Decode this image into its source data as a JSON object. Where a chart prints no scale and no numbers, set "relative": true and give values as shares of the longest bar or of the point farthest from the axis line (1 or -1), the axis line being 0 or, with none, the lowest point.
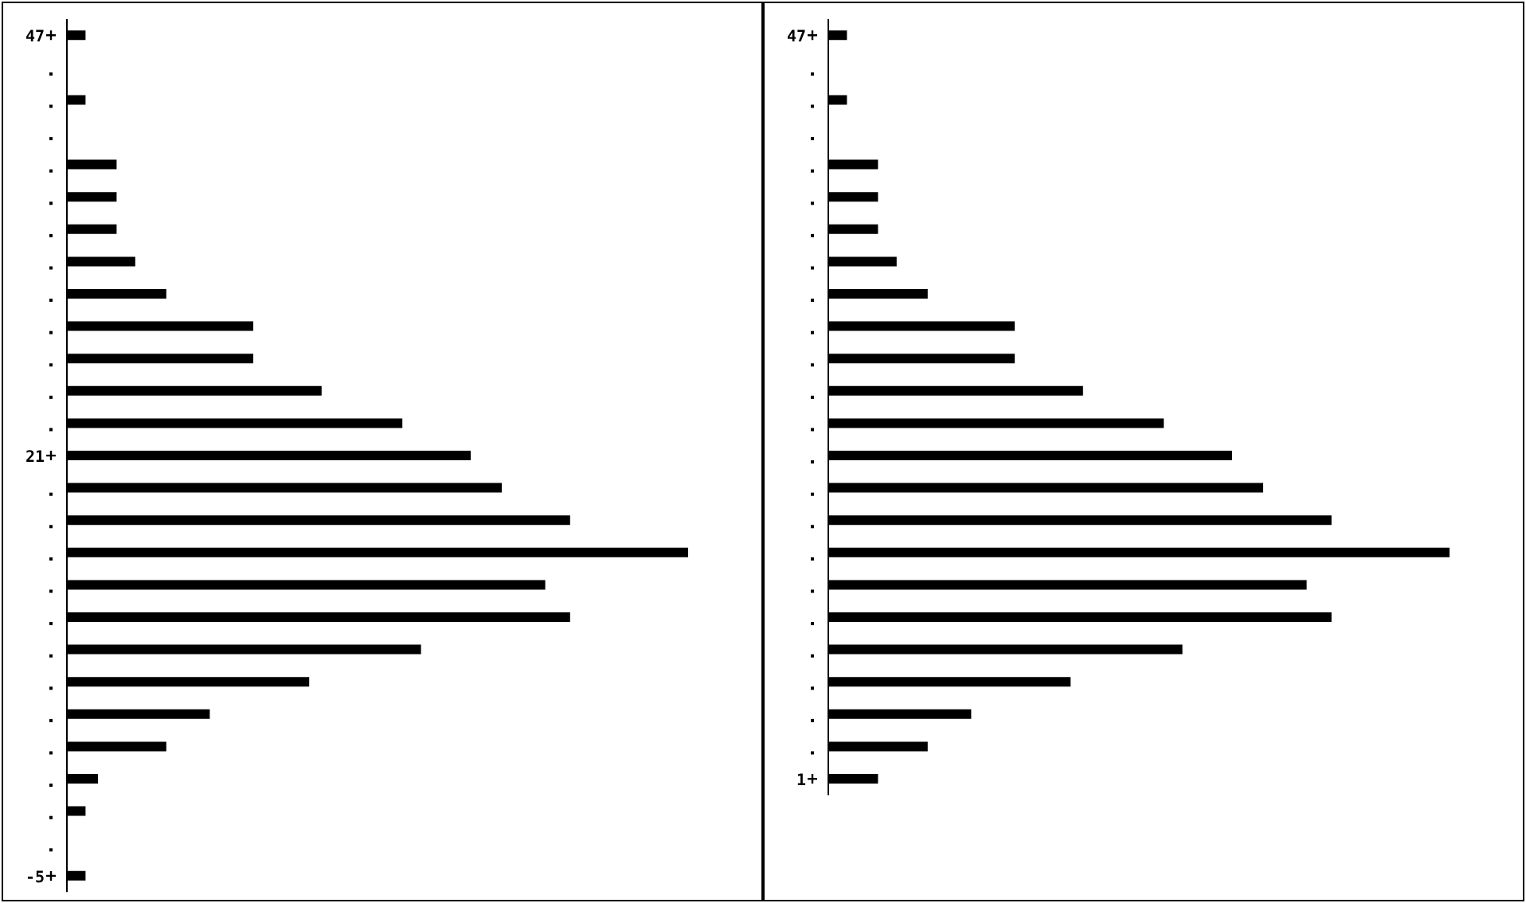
{
  "chart_data": [
    {
      "type": "bar",
      "orientation": "horizontal",
      "relative": true,
      "color": "#000000",
      "categories": [
        "47",
        null,
        null,
        null,
        null,
        null,
        null,
        null,
        null,
        null,
        null,
        null,
        null,
        "21",
        null,
        null,
        null,
        null,
        null,
        null,
        null,
        null,
        null,
        null,
        null,
        null,
        "-5"
      ],
      "values": [
        0.03,
        0,
        0.03,
        0,
        0.08,
        0.08,
        0.08,
        0.11,
        0.16,
        0.3,
        0.3,
        0.41,
        0.54,
        0.65,
        0.7,
        0.81,
        1,
        0.77,
        0.81,
        0.57,
        0.39,
        0.23,
        0.16,
        0.05,
        0.03,
        0,
        0.03
      ]
    },
    {
      "type": "bar",
      "orientation": "horizontal",
      "relative": true,
      "color": "#000000",
      "categories": [
        "47",
        null,
        null,
        null,
        null,
        null,
        null,
        null,
        null,
        null,
        null,
        null,
        null,
        null,
        null,
        null,
        null,
        null,
        null,
        null,
        null,
        null,
        null,
        "1"
      ],
      "values": [
        0.03,
        0,
        0.03,
        0,
        0.08,
        0.08,
        0.08,
        0.11,
        0.16,
        0.3,
        0.3,
        0.41,
        0.54,
        0.65,
        0.7,
        0.81,
        1,
        0.77,
        0.81,
        0.57,
        0.39,
        0.23,
        0.16,
        0.08
      ]
    }
  ]
}
